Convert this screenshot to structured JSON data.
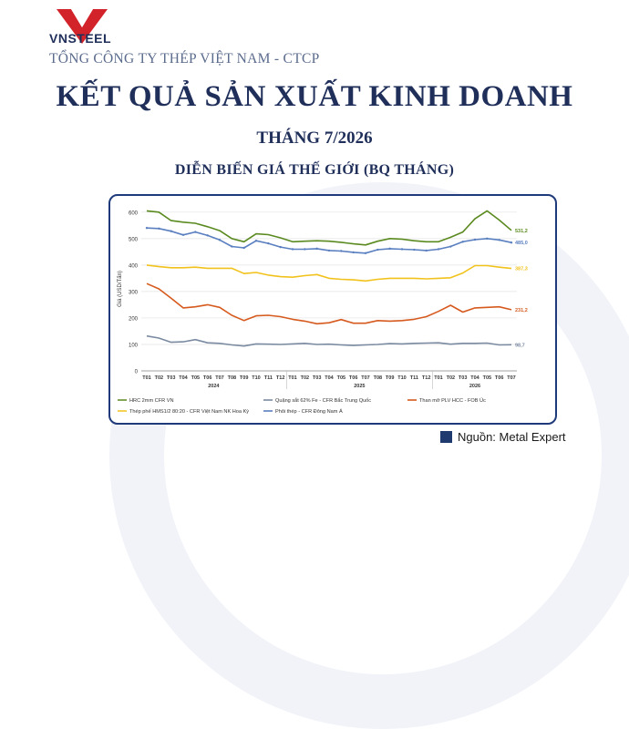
{
  "header": {
    "logo_text": "VNSTEEL",
    "company": "TỔNG CÔNG TY THÉP VIỆT NAM - CTCP",
    "title": "KẾT QUẢ SẢN XUẤT KINH DOANH",
    "subtitle": "THÁNG 7/2026",
    "section": "DIỄN BIẾN GIÁ THẾ GIỚI (BQ THÁNG)"
  },
  "source": "Nguồn: Metal Expert",
  "colors": {
    "hrc": "#5a8a1f",
    "ore": "#7a8aa0",
    "coke": "#d65a1e",
    "scrap": "#f2c21c",
    "billet": "#5a7fc0",
    "brand_navy": "#1f2f5a",
    "logo_red": "#d2232a"
  },
  "chart_data": {
    "type": "line",
    "title": "",
    "ylabel": "Giá (USD/Tấn)",
    "ylim": [
      0,
      620
    ],
    "yticks": [
      0,
      100,
      200,
      300,
      400,
      500,
      600
    ],
    "grid": true,
    "legend": "bottom",
    "x": [
      "T01",
      "T02",
      "T03",
      "T04",
      "T05",
      "T06",
      "T07",
      "T08",
      "T09",
      "T10",
      "T11",
      "T12",
      "T01",
      "T02",
      "T03",
      "T04",
      "T05",
      "T06",
      "T07",
      "T08",
      "T09",
      "T10",
      "T11",
      "T12",
      "T01",
      "T02",
      "T03",
      "T04",
      "T05",
      "T06",
      "T07"
    ],
    "year_groups": [
      {
        "label": "2024",
        "start": 0,
        "end": 11
      },
      {
        "label": "2025",
        "start": 12,
        "end": 23
      },
      {
        "label": "2026",
        "start": 24,
        "end": 30
      }
    ],
    "series": [
      {
        "name": "HRC 2mm CFR VN",
        "key": "hrc",
        "end_label": "531,2",
        "values": [
          605,
          600,
          568,
          562,
          558,
          545,
          530,
          500,
          488,
          518,
          515,
          503,
          488,
          490,
          492,
          490,
          486,
          480,
          476,
          490,
          500,
          498,
          492,
          488,
          488,
          505,
          525,
          575,
          605,
          570,
          531.2
        ]
      },
      {
        "name": "Quặng sắt 62% Fe - CFR Bắc Trung Quốc",
        "key": "ore",
        "end_label": "98,7",
        "values": [
          132,
          124,
          108,
          110,
          118,
          106,
          104,
          98,
          94,
          102,
          101,
          100,
          102,
          104,
          100,
          101,
          98,
          96,
          98,
          100,
          103,
          102,
          104,
          105,
          106,
          101,
          104,
          104,
          105,
          98,
          98.7
        ]
      },
      {
        "name": "Than mỡ PLV HCC - FOB Úc",
        "key": "coke",
        "end_label": "231,2",
        "values": [
          330,
          310,
          275,
          238,
          242,
          250,
          240,
          210,
          190,
          208,
          210,
          205,
          195,
          188,
          178,
          182,
          194,
          180,
          180,
          190,
          188,
          190,
          195,
          205,
          225,
          248,
          222,
          238,
          240,
          242,
          231.2
        ]
      },
      {
        "name": "Thép phế HMS1/2 80:20 - CFR Việt Nam NK Hoa Kỳ",
        "key": "scrap",
        "end_label": "387,3",
        "values": [
          400,
          394,
          390,
          390,
          392,
          388,
          388,
          388,
          368,
          372,
          362,
          356,
          354,
          360,
          364,
          350,
          346,
          344,
          340,
          346,
          350,
          350,
          350,
          348,
          350,
          352,
          370,
          398,
          398,
          392,
          387.3
        ]
      },
      {
        "name": "Phôi thép - CFR Đông Nam Á",
        "key": "billet",
        "end_label": "485,0",
        "values": [
          540,
          538,
          528,
          514,
          525,
          512,
          495,
          470,
          465,
          492,
          482,
          468,
          460,
          460,
          462,
          455,
          453,
          448,
          445,
          458,
          462,
          460,
          458,
          455,
          460,
          470,
          488,
          496,
          500,
          495,
          485.0
        ]
      }
    ]
  }
}
